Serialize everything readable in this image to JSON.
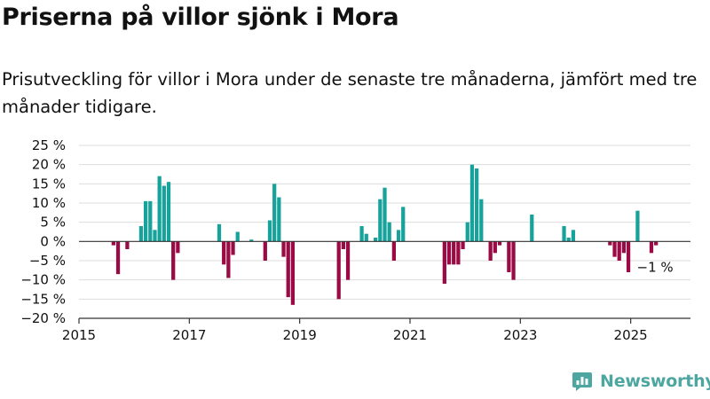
{
  "header": {
    "title": "Priserna på villor sjönk i Mora",
    "subtitle": "Prisutveckling för villor i Mora under de senaste tre månaderna, jämfört med tre månader tidigare."
  },
  "brand": {
    "name": "Newsworthy",
    "icon": "newsworthy-logo-icon",
    "color": "#4da6a0"
  },
  "colors": {
    "positive": "#17a39b",
    "negative": "#9a0a44",
    "grid": "#dddddd",
    "axis": "#333333"
  },
  "chart_data": {
    "type": "bar",
    "title": "Priserna på villor sjönk i Mora",
    "subtitle": "Prisutveckling för villor i Mora under de senaste tre månaderna, jämfört med tre månader tidigare.",
    "xlabel": "",
    "ylabel": "",
    "ylim": [
      -20,
      25
    ],
    "xlim": [
      "2015-01",
      "2026-02"
    ],
    "grid": true,
    "y_ticks": [
      {
        "value": 25,
        "label": "25 %"
      },
      {
        "value": 20,
        "label": "20 %"
      },
      {
        "value": 15,
        "label": "15 %"
      },
      {
        "value": 10,
        "label": "10 %"
      },
      {
        "value": 5,
        "label": "5 %"
      },
      {
        "value": 0,
        "label": "0 %"
      },
      {
        "value": -5,
        "label": "−5 %"
      },
      {
        "value": -10,
        "label": "−10 %"
      },
      {
        "value": -15,
        "label": "−15 %"
      },
      {
        "value": -20,
        "label": "−20 %"
      }
    ],
    "x_ticks": [
      {
        "value": "2015-01",
        "label": "2015"
      },
      {
        "value": "2017-01",
        "label": "2017"
      },
      {
        "value": "2019-01",
        "label": "2019"
      },
      {
        "value": "2021-01",
        "label": "2021"
      },
      {
        "value": "2023-01",
        "label": "2023"
      },
      {
        "value": "2025-01",
        "label": "2025"
      }
    ],
    "series": [
      {
        "values": [
          {
            "x": "2015-08",
            "y": -1
          },
          {
            "x": "2015-09",
            "y": -8.5
          },
          {
            "x": "2015-11",
            "y": -2
          },
          {
            "x": "2016-02",
            "y": 4
          },
          {
            "x": "2016-03",
            "y": 10.5
          },
          {
            "x": "2016-04",
            "y": 10.5
          },
          {
            "x": "2016-05",
            "y": 3
          },
          {
            "x": "2016-06",
            "y": 17
          },
          {
            "x": "2016-07",
            "y": 14.5
          },
          {
            "x": "2016-08",
            "y": 15.5
          },
          {
            "x": "2016-09",
            "y": -10
          },
          {
            "x": "2016-10",
            "y": -3
          },
          {
            "x": "2017-07",
            "y": 4.5
          },
          {
            "x": "2017-08",
            "y": -6
          },
          {
            "x": "2017-09",
            "y": -9.5
          },
          {
            "x": "2017-10",
            "y": -3.5
          },
          {
            "x": "2017-11",
            "y": 2.5
          },
          {
            "x": "2018-02",
            "y": 0.5
          },
          {
            "x": "2018-05",
            "y": -5
          },
          {
            "x": "2018-06",
            "y": 5.5
          },
          {
            "x": "2018-07",
            "y": 15
          },
          {
            "x": "2018-08",
            "y": 11.5
          },
          {
            "x": "2018-09",
            "y": -4
          },
          {
            "x": "2018-10",
            "y": -14.5
          },
          {
            "x": "2018-11",
            "y": -16.5
          },
          {
            "x": "2019-09",
            "y": -15
          },
          {
            "x": "2019-10",
            "y": -2
          },
          {
            "x": "2019-11",
            "y": -10
          },
          {
            "x": "2020-02",
            "y": 4
          },
          {
            "x": "2020-03",
            "y": 2
          },
          {
            "x": "2020-05",
            "y": 1
          },
          {
            "x": "2020-06",
            "y": 11
          },
          {
            "x": "2020-07",
            "y": 14
          },
          {
            "x": "2020-08",
            "y": 5
          },
          {
            "x": "2020-09",
            "y": -5
          },
          {
            "x": "2020-10",
            "y": 3
          },
          {
            "x": "2020-11",
            "y": 9
          },
          {
            "x": "2021-08",
            "y": -11
          },
          {
            "x": "2021-09",
            "y": -6
          },
          {
            "x": "2021-10",
            "y": -6
          },
          {
            "x": "2021-11",
            "y": -6
          },
          {
            "x": "2021-12",
            "y": -2
          },
          {
            "x": "2022-01",
            "y": 5
          },
          {
            "x": "2022-02",
            "y": 20
          },
          {
            "x": "2022-03",
            "y": 19
          },
          {
            "x": "2022-04",
            "y": 11
          },
          {
            "x": "2022-06",
            "y": -5
          },
          {
            "x": "2022-07",
            "y": -3
          },
          {
            "x": "2022-08",
            "y": -1
          },
          {
            "x": "2022-10",
            "y": -8
          },
          {
            "x": "2022-11",
            "y": -10
          },
          {
            "x": "2023-03",
            "y": 7
          },
          {
            "x": "2023-10",
            "y": 4
          },
          {
            "x": "2023-11",
            "y": 1
          },
          {
            "x": "2023-12",
            "y": 3
          },
          {
            "x": "2024-08",
            "y": -1
          },
          {
            "x": "2024-09",
            "y": -4
          },
          {
            "x": "2024-10",
            "y": -5
          },
          {
            "x": "2024-11",
            "y": -3
          },
          {
            "x": "2024-12",
            "y": -8
          },
          {
            "x": "2025-02",
            "y": 8
          },
          {
            "x": "2025-05",
            "y": -3
          },
          {
            "x": "2025-06",
            "y": -1
          }
        ]
      }
    ],
    "annotations": [
      {
        "x": "2025-06",
        "y": -1,
        "label": "−1 %"
      }
    ]
  }
}
